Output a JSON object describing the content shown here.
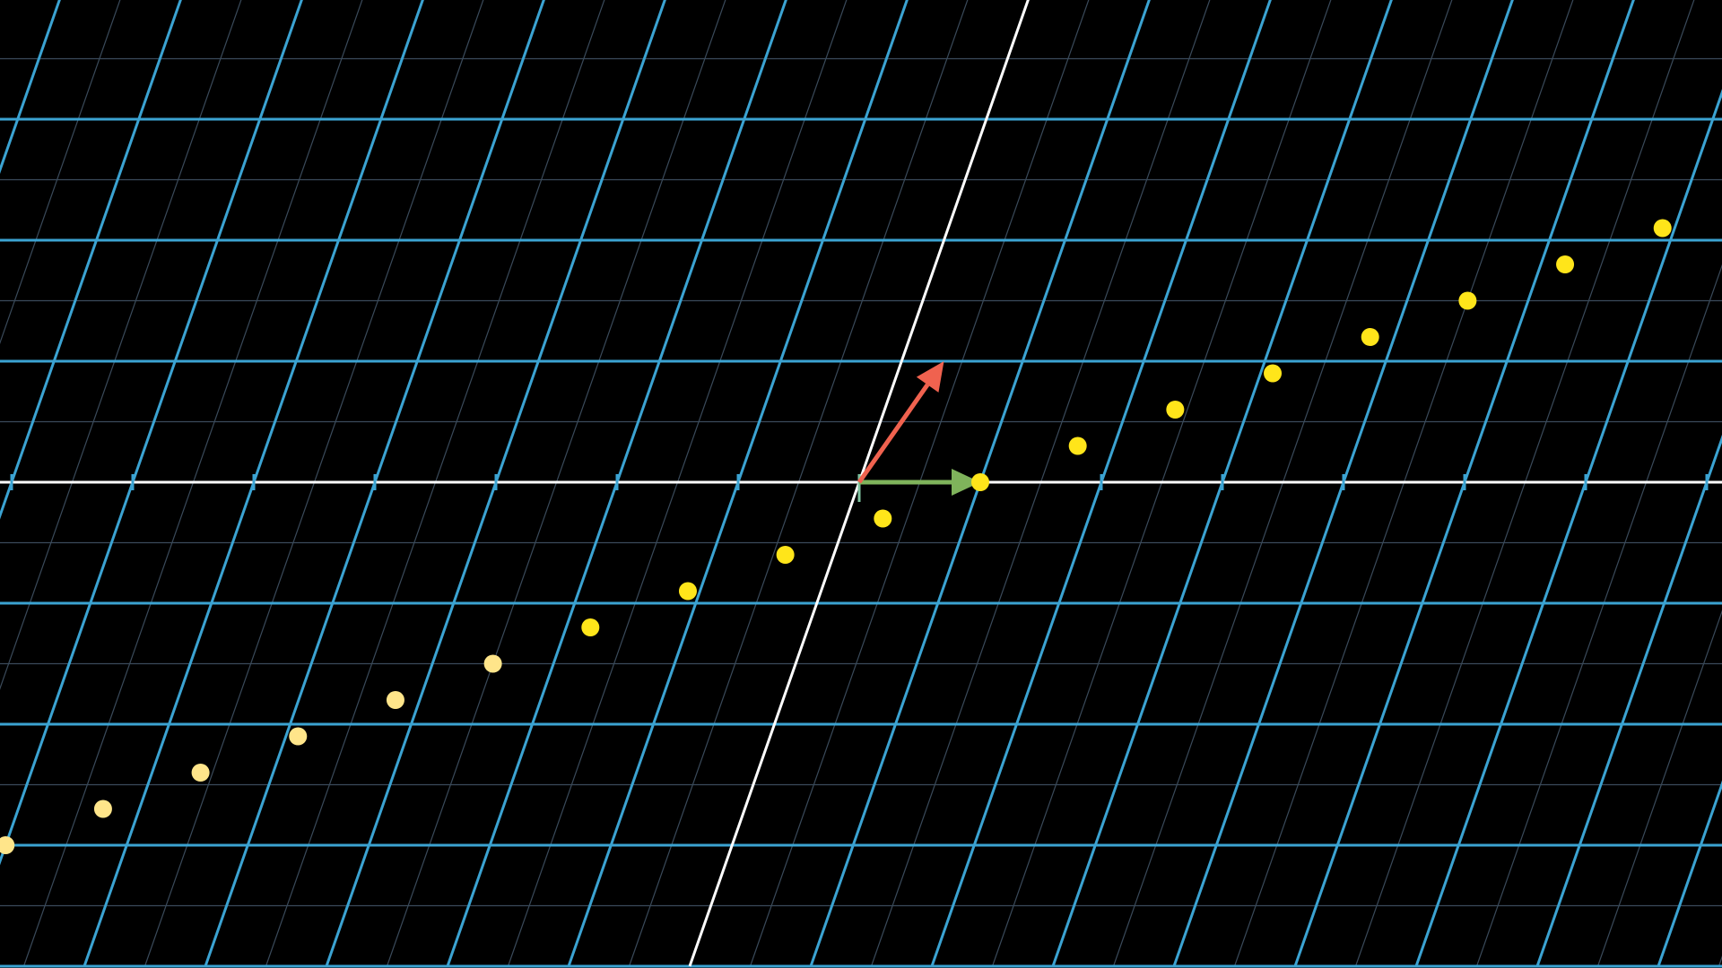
{
  "colors": {
    "background": "#000000",
    "grid_major": "#3ba3d2",
    "grid_minor": "#3a4a5a",
    "axis": "#ffffff",
    "basis_i": "#7fb35b",
    "basis_j": "#f0624f",
    "dot_yellow": "#ffe51a",
    "dot_pale": "#ffe58a"
  },
  "transform": {
    "i_hat": [
      1,
      0
    ],
    "j_hat": [
      0.35,
      1
    ]
  },
  "basis_vectors": [
    {
      "name": "i-hat",
      "vector": [
        1,
        0
      ],
      "color": "#7fb35b"
    },
    {
      "name": "j-hat",
      "vector": [
        0.35,
        1
      ],
      "color": "#f0624f"
    }
  ],
  "points": [
    [
      -6,
      -3
    ],
    [
      -5.3,
      -2.7
    ],
    [
      -4.6,
      -2.4
    ],
    [
      -3.9,
      -2.1
    ],
    [
      -3.2,
      -1.8
    ],
    [
      -2.5,
      -1.5
    ],
    [
      -1.8,
      -1.2
    ],
    [
      -1.1,
      -0.9
    ],
    [
      -0.4,
      -0.6
    ],
    [
      0.3,
      -0.3
    ],
    [
      1,
      0
    ],
    [
      1.7,
      0.3
    ],
    [
      2.4,
      0.6
    ],
    [
      3.1,
      0.9
    ],
    [
      3.8,
      1.2
    ],
    [
      4.5,
      1.5
    ],
    [
      5.2,
      1.8
    ],
    [
      5.9,
      2.1
    ]
  ]
}
